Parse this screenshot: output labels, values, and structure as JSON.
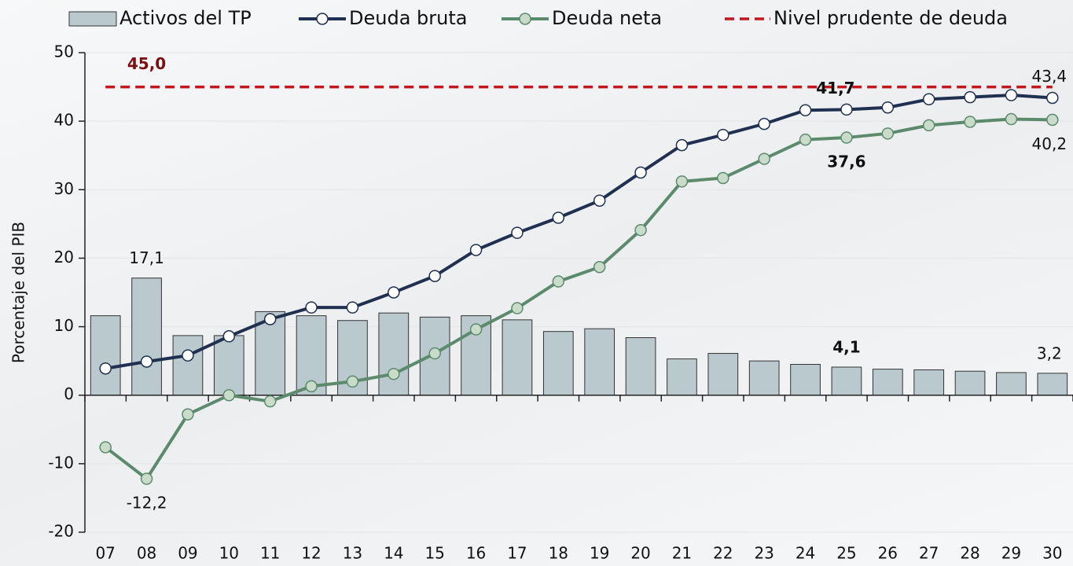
{
  "chart_data": {
    "type": "bar-line",
    "y_label": "Porcentaje del PIB",
    "categories": [
      "07",
      "08",
      "09",
      "10",
      "11",
      "12",
      "13",
      "14",
      "15",
      "16",
      "17",
      "18",
      "19",
      "20",
      "21",
      "22",
      "23",
      "24",
      "25",
      "26",
      "27",
      "28",
      "29",
      "30"
    ],
    "series": [
      {
        "name": "Activos del TP",
        "type": "bar",
        "color": "#b9c9ce",
        "values": [
          11.6,
          17.1,
          8.7,
          8.7,
          12.2,
          11.6,
          10.9,
          12.0,
          11.4,
          11.6,
          11.0,
          9.3,
          9.7,
          8.4,
          5.3,
          6.1,
          5.0,
          4.5,
          4.1,
          3.8,
          3.7,
          3.5,
          3.3,
          3.2
        ],
        "value_labels": [
          null,
          "17,1",
          null,
          null,
          null,
          null,
          null,
          null,
          null,
          null,
          null,
          null,
          null,
          null,
          null,
          null,
          null,
          null,
          "4,1",
          null,
          null,
          null,
          null,
          "3,2"
        ]
      },
      {
        "name": "Deuda bruta",
        "type": "line",
        "color": "#1f3050",
        "marker_fill": "#ffffff",
        "values": [
          3.9,
          4.9,
          5.8,
          8.6,
          11.1,
          12.8,
          12.8,
          15.0,
          17.4,
          21.2,
          23.7,
          25.9,
          28.4,
          32.5,
          36.5,
          38.0,
          39.6,
          41.6,
          41.7,
          42.0,
          43.2,
          43.5,
          43.8,
          43.4
        ],
        "value_labels": [
          null,
          null,
          null,
          null,
          null,
          null,
          null,
          null,
          null,
          null,
          null,
          null,
          null,
          null,
          null,
          null,
          null,
          null,
          "41,7",
          null,
          null,
          null,
          null,
          "43,4"
        ]
      },
      {
        "name": "Deuda neta",
        "type": "line",
        "color": "#5b8a6c",
        "marker_fill": "#c9dcc9",
        "values": [
          -7.6,
          -12.2,
          -2.8,
          0,
          -0.9,
          1.3,
          2.0,
          3.1,
          6.1,
          9.6,
          12.7,
          16.6,
          18.7,
          24.1,
          31.2,
          31.7,
          34.5,
          37.3,
          37.6,
          38.2,
          39.4,
          39.9,
          40.3,
          40.2
        ],
        "value_labels": [
          null,
          "-12,2",
          null,
          null,
          null,
          null,
          null,
          null,
          null,
          null,
          null,
          null,
          null,
          null,
          null,
          null,
          null,
          null,
          "37,6",
          null,
          null,
          null,
          null,
          "40,2"
        ]
      }
    ],
    "reference": {
      "name": "Nivel prudente de deuda",
      "color": "#c4161c",
      "value": 45.0,
      "value_label": "45,0"
    },
    "ylim": [
      -20,
      50
    ],
    "yticks": [
      -20,
      -10,
      0,
      10,
      20,
      30,
      40,
      50
    ],
    "grid": true
  }
}
